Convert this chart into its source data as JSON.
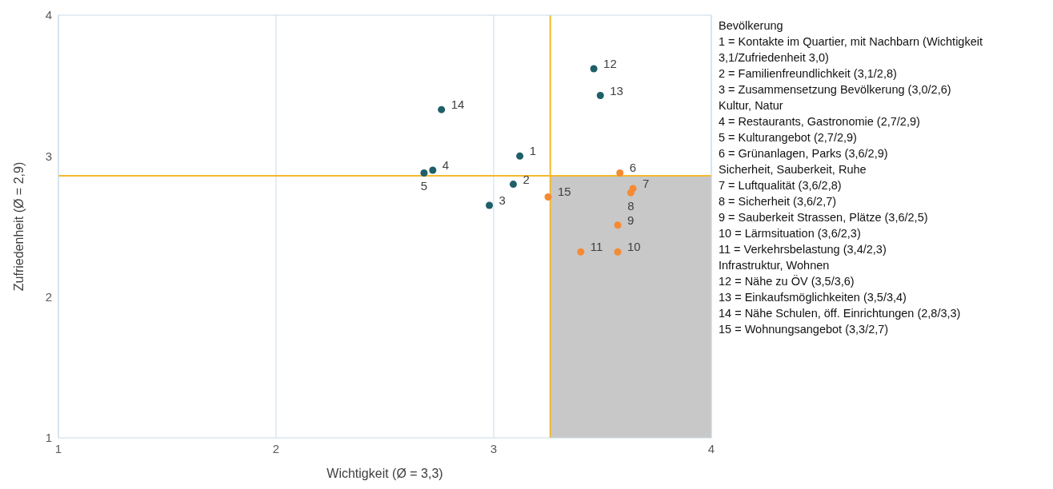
{
  "chart_data": {
    "type": "scatter",
    "xlabel": "Wichtigkeit (Ø = 3,3)",
    "ylabel": "Zufriedenheit (Ø = 2,9)",
    "xlim": [
      1,
      4
    ],
    "ylim": [
      1,
      4
    ],
    "xticks": [
      1,
      2,
      3,
      4
    ],
    "yticks": [
      1,
      2,
      3,
      4
    ],
    "grid": "x",
    "marker": "circle",
    "series": [
      {
        "color": "#1f5f68",
        "x": [
          3.12,
          3.09,
          2.98,
          2.72,
          2.68,
          3.46,
          3.49,
          2.76
        ],
        "values": [
          3.0,
          2.8,
          2.65,
          2.9,
          2.88,
          3.62,
          3.43,
          3.33
        ]
      },
      {
        "color": "#f58a34",
        "x": [
          3.58,
          3.64,
          3.63,
          3.57,
          3.57,
          3.4,
          3.25
        ],
        "values": [
          2.88,
          2.77,
          2.74,
          2.51,
          2.32,
          2.32,
          2.71
        ]
      }
    ],
    "ref_lines": [
      {
        "axis": "x",
        "value": 3.26,
        "color": "#f5b82e"
      },
      {
        "axis": "y",
        "value": 2.86,
        "color": "#f5b82e"
      }
    ],
    "bands": [
      {
        "axis": "x",
        "from": 3.26,
        "to": 4,
        "color": "#c8c8c8"
      }
    ],
    "annotations": [
      {
        "text": "1",
        "x": 3.12,
        "y": 3.0
      },
      {
        "text": "2",
        "x": 3.09,
        "y": 2.8
      },
      {
        "text": "3",
        "x": 2.98,
        "y": 2.65
      },
      {
        "text": "4",
        "x": 2.72,
        "y": 2.9
      },
      {
        "text": "5",
        "x": 2.68,
        "y": 2.88
      },
      {
        "text": "6",
        "x": 3.58,
        "y": 2.88
      },
      {
        "text": "7",
        "x": 3.64,
        "y": 2.77
      },
      {
        "text": "8",
        "x": 3.63,
        "y": 2.74
      },
      {
        "text": "9",
        "x": 3.57,
        "y": 2.51
      },
      {
        "text": "10",
        "x": 3.57,
        "y": 2.32
      },
      {
        "text": "11",
        "x": 3.4,
        "y": 2.32
      },
      {
        "text": "12",
        "x": 3.46,
        "y": 3.62
      },
      {
        "text": "13",
        "x": 3.49,
        "y": 3.43
      },
      {
        "text": "14",
        "x": 2.76,
        "y": 3.33
      },
      {
        "text": "15",
        "x": 3.25,
        "y": 2.71
      },
      "Bevölkerung",
      "1 = Kontakte im Quartier, mit Nachbarn (Wichtigkeit 3,1/Zufriedenheit 3,0)",
      "2 = Familienfreundlichkeit (3,1/2,8)",
      "3 = Zusammensetzung Bevölkerung (3,0/2,6)",
      "Kultur, Natur",
      "4 = Restaurants, Gastronomie (2,7/2,9)",
      "5 = Kulturangebot (2,7/2,9)",
      "6 = Grünanlagen, Parks (3,6/2,9)",
      "Sicherheit, Sauberkeit, Ruhe",
      "7 = Luftqualität (3,6/2,8)",
      "8 = Sicherheit (3,6/2,7)",
      "9 = Sauberkeit Strassen, Plätze (3,6/2,5)",
      "10 = Lärmsituation (3,6/2,3)",
      "11 = Verkehrsbelastung (3,4/2,3)",
      "Infrastruktur, Wohnen",
      "12 = Nähe zu ÖV (3,5/3,6)",
      "13 = Einkaufsmöglichkeiten (3,5/3,4)",
      "14 = Nähe Schulen, öff. Einrichtungen (2,8/3,3)",
      "15 = Wohnungsangebot (3,3/2,7)"
    ]
  }
}
